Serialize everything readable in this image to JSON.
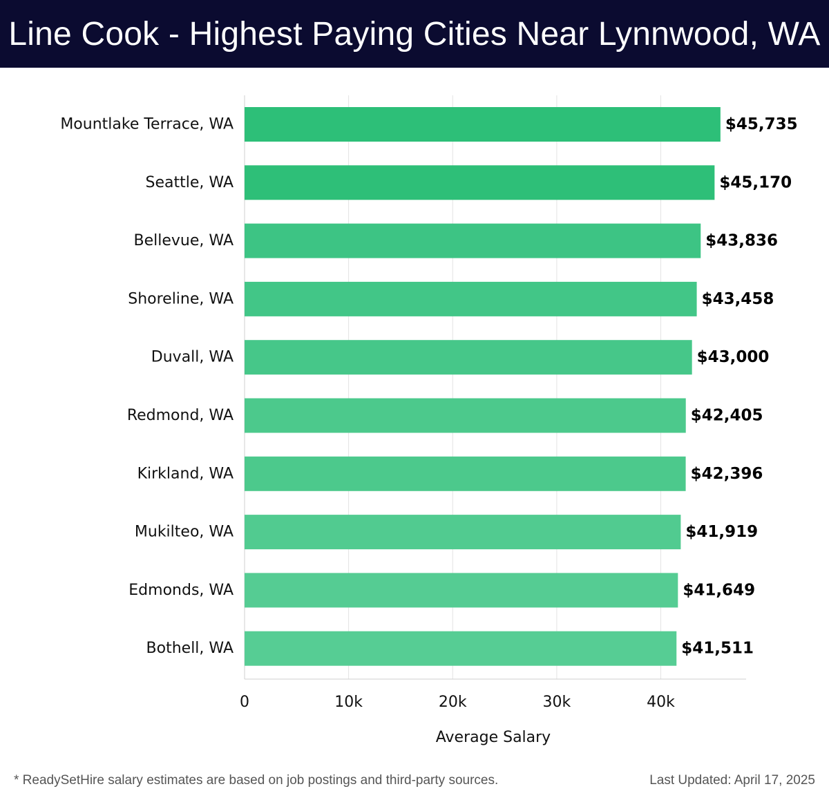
{
  "header": {
    "title": "Line Cook - Highest Paying Cities Near Lynnwood, WA"
  },
  "chart_data": {
    "type": "bar",
    "orientation": "horizontal",
    "title": "Line Cook - Highest Paying Cities Near Lynnwood, WA",
    "xlabel": "Average Salary",
    "ylabel": "",
    "categories": [
      "Mountlake Terrace, WA",
      "Seattle, WA",
      "Bellevue, WA",
      "Shoreline, WA",
      "Duvall, WA",
      "Redmond, WA",
      "Kirkland, WA",
      "Mukilteo, WA",
      "Edmonds, WA",
      "Bothell, WA"
    ],
    "values": [
      45735,
      45170,
      43836,
      43458,
      43000,
      42405,
      42396,
      41919,
      41649,
      41511
    ],
    "value_labels": [
      "$45,735",
      "$45,170",
      "$43,836",
      "$43,458",
      "$43,000",
      "$42,405",
      "$42,396",
      "$41,919",
      "$41,649",
      "$41,511"
    ],
    "x_ticks": [
      0,
      10000,
      20000,
      30000,
      40000
    ],
    "x_tick_labels": [
      "0",
      "10k",
      "20k",
      "30k",
      "40k"
    ],
    "xlim": [
      0,
      48200
    ],
    "grid": "vertical",
    "bar_colors": [
      "#2dbf78",
      "#2ebf78",
      "#3dc484",
      "#42c687",
      "#46c789",
      "#4cc98c",
      "#4cc98c",
      "#51cb90",
      "#55cc93",
      "#56cd94"
    ]
  },
  "footer": {
    "note": "* ReadySetHire salary estimates are based on job postings and third-party sources.",
    "updated": "Last Updated: April 17, 2025"
  }
}
